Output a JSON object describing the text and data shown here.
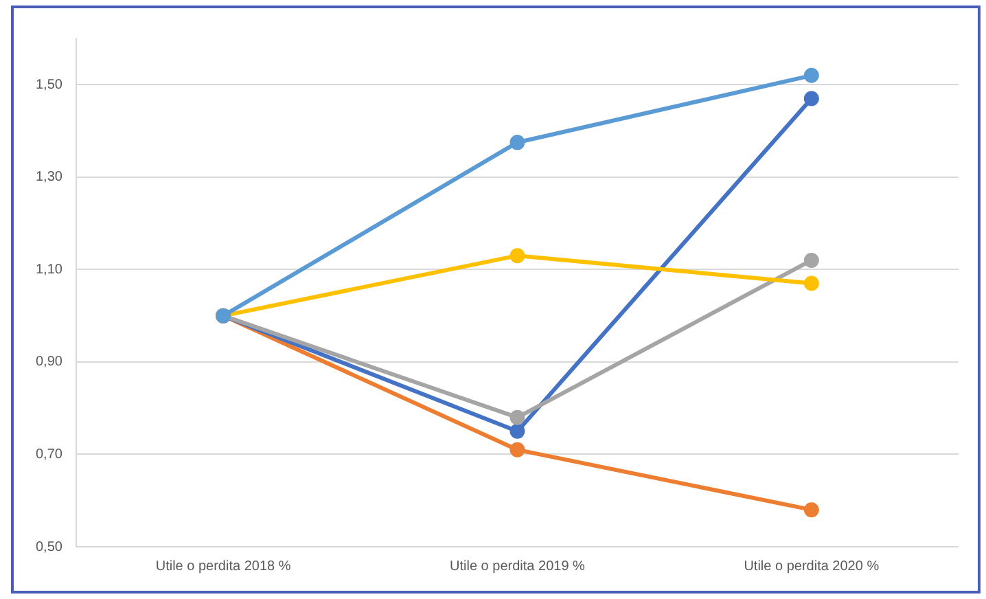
{
  "chart_data": {
    "type": "line",
    "categories": [
      "Utile o perdita 2018 %",
      "Utile o perdita 2019 %",
      "Utile o perdita 2020 %"
    ],
    "series": [
      {
        "color": "#5b9bd5",
        "values": [
          1.0,
          1.375,
          1.52
        ]
      },
      {
        "color": "#ffc000",
        "values": [
          1.0,
          1.13,
          1.07
        ]
      },
      {
        "color": "#a5a5a5",
        "values": [
          1.0,
          0.78,
          1.12
        ]
      },
      {
        "color": "#4472c4",
        "values": [
          1.0,
          0.75,
          1.47
        ]
      },
      {
        "color": "#ed7d31",
        "values": [
          1.0,
          0.71,
          0.58
        ]
      }
    ],
    "ylim": [
      0.5,
      1.6
    ],
    "yticks": [
      {
        "value": 0.5,
        "label": "0,50"
      },
      {
        "value": 0.7,
        "label": "0,70"
      },
      {
        "value": 0.9,
        "label": "0,90"
      },
      {
        "value": 1.1,
        "label": "1,10"
      },
      {
        "value": 1.3,
        "label": "1,30"
      },
      {
        "value": 1.5,
        "label": "1,50"
      }
    ],
    "grid": "y",
    "legend": false,
    "marker": "circle",
    "line_style": "solid"
  }
}
